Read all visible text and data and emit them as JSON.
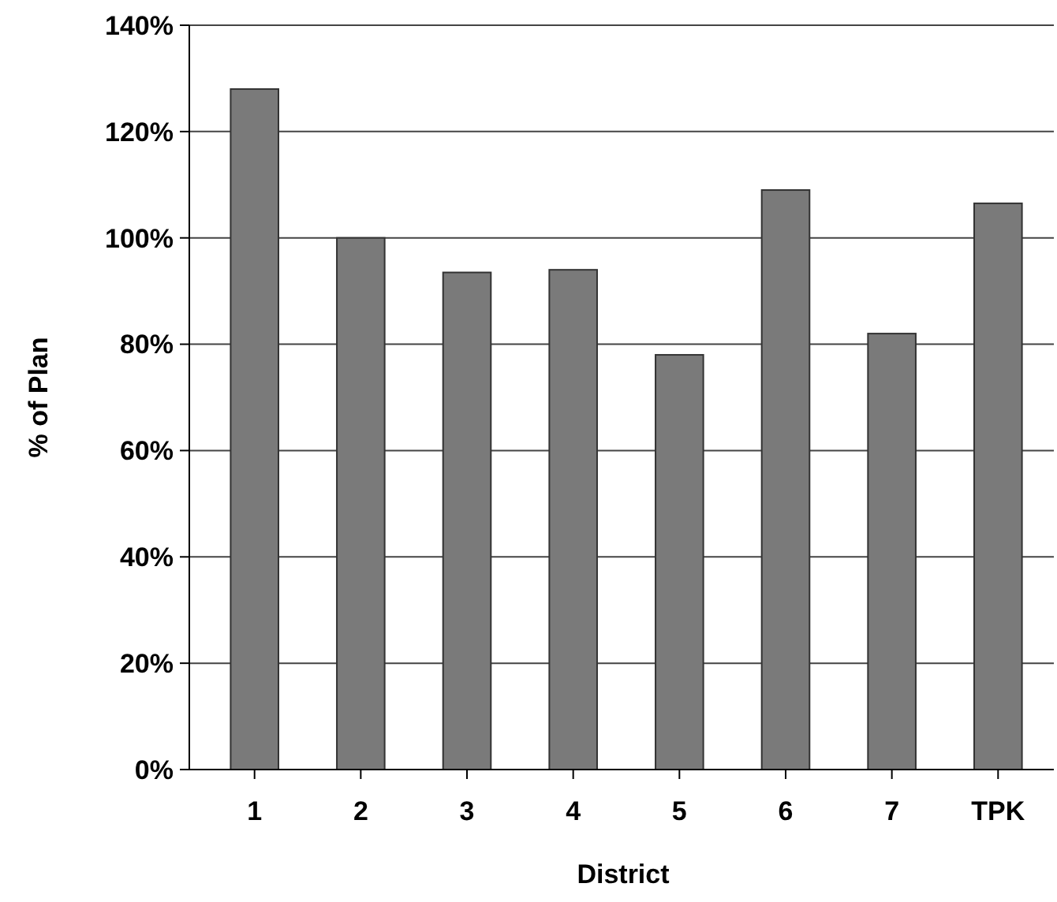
{
  "chart_data": {
    "type": "bar",
    "xlabel": "District",
    "ylabel": "% of Plan",
    "categories": [
      "1",
      "2",
      "3",
      "4",
      "5",
      "6",
      "7",
      "TPK"
    ],
    "values": [
      128,
      100,
      93.5,
      94,
      78,
      109,
      82,
      106.5
    ],
    "color": "#7a7a7a",
    "ylim": [
      0,
      140
    ],
    "yticks": [
      {
        "value": 0,
        "label": "0%"
      },
      {
        "value": 20,
        "label": "20%"
      },
      {
        "value": 40,
        "label": "40%"
      },
      {
        "value": 60,
        "label": "60%"
      },
      {
        "value": 80,
        "label": "80%"
      },
      {
        "value": 100,
        "label": "100%"
      },
      {
        "value": 120,
        "label": "120%"
      },
      {
        "value": 140,
        "label": "140%"
      }
    ],
    "grid": "y"
  }
}
